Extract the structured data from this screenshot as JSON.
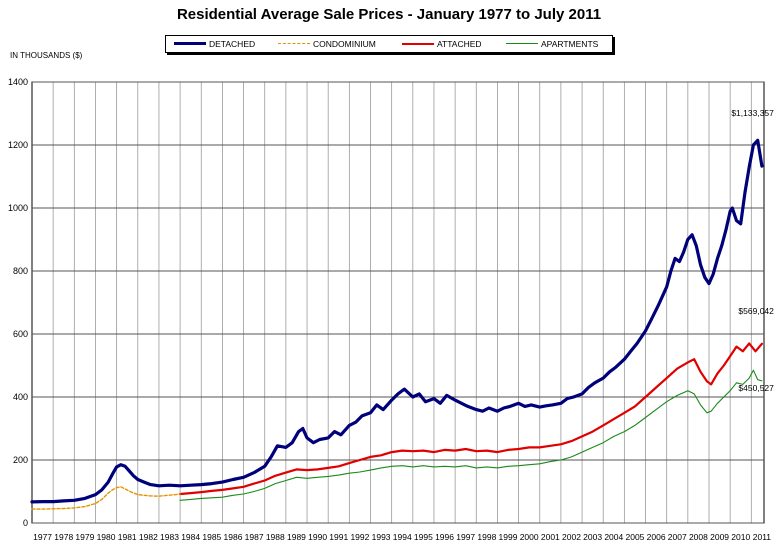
{
  "chart_data": {
    "type": "line",
    "title": "Residential Average Sale Prices  -  January 1977 to July 2011",
    "ylabel": "IN THOUSANDS ($)",
    "xlabel": "",
    "ylim": [
      0,
      1400
    ],
    "yticks": [
      "0",
      "200",
      "400",
      "600",
      "800",
      "1000",
      "1200",
      "1400"
    ],
    "xlim": [
      1977,
      2011.6
    ],
    "xticks": [
      "1977",
      "1978",
      "1979",
      "1980",
      "1981",
      "1982",
      "1983",
      "1984",
      "1985",
      "1986",
      "1987",
      "1988",
      "1989",
      "1990",
      "1991",
      "1992",
      "1993",
      "1994",
      "1995",
      "1996",
      "1997",
      "1998",
      "1999",
      "2000",
      "2001",
      "2002",
      "2003",
      "2004",
      "2005",
      "2006",
      "2007",
      "2008",
      "2009",
      "2010",
      "2011"
    ],
    "grid": true,
    "legend_position": "top",
    "series": [
      {
        "name": "DETACHED",
        "color": "#00007a",
        "style": "solid-thick",
        "points": [
          [
            1977.0,
            67
          ],
          [
            1977.5,
            68
          ],
          [
            1978.0,
            68
          ],
          [
            1978.5,
            70
          ],
          [
            1979.0,
            72
          ],
          [
            1979.5,
            78
          ],
          [
            1980.0,
            90
          ],
          [
            1980.3,
            105
          ],
          [
            1980.6,
            130
          ],
          [
            1980.8,
            155
          ],
          [
            1981.0,
            178
          ],
          [
            1981.2,
            185
          ],
          [
            1981.4,
            180
          ],
          [
            1981.6,
            165
          ],
          [
            1981.8,
            150
          ],
          [
            1982.0,
            138
          ],
          [
            1982.3,
            130
          ],
          [
            1982.6,
            122
          ],
          [
            1983.0,
            118
          ],
          [
            1983.5,
            120
          ],
          [
            1984.0,
            118
          ],
          [
            1984.5,
            120
          ],
          [
            1985.0,
            122
          ],
          [
            1985.5,
            125
          ],
          [
            1986.0,
            130
          ],
          [
            1986.5,
            138
          ],
          [
            1987.0,
            145
          ],
          [
            1987.5,
            160
          ],
          [
            1988.0,
            180
          ],
          [
            1988.3,
            210
          ],
          [
            1988.6,
            245
          ],
          [
            1989.0,
            240
          ],
          [
            1989.3,
            255
          ],
          [
            1989.6,
            290
          ],
          [
            1989.8,
            300
          ],
          [
            1990.0,
            270
          ],
          [
            1990.3,
            255
          ],
          [
            1990.6,
            265
          ],
          [
            1991.0,
            270
          ],
          [
            1991.3,
            290
          ],
          [
            1991.6,
            280
          ],
          [
            1992.0,
            310
          ],
          [
            1992.3,
            320
          ],
          [
            1992.6,
            340
          ],
          [
            1993.0,
            350
          ],
          [
            1993.3,
            375
          ],
          [
            1993.6,
            360
          ],
          [
            1994.0,
            390
          ],
          [
            1994.3,
            410
          ],
          [
            1994.6,
            425
          ],
          [
            1995.0,
            400
          ],
          [
            1995.3,
            410
          ],
          [
            1995.6,
            385
          ],
          [
            1996.0,
            395
          ],
          [
            1996.3,
            380
          ],
          [
            1996.6,
            405
          ],
          [
            1997.0,
            390
          ],
          [
            1997.3,
            380
          ],
          [
            1997.6,
            370
          ],
          [
            1998.0,
            360
          ],
          [
            1998.3,
            355
          ],
          [
            1998.6,
            365
          ],
          [
            1999.0,
            355
          ],
          [
            1999.3,
            365
          ],
          [
            1999.6,
            370
          ],
          [
            2000.0,
            380
          ],
          [
            2000.3,
            370
          ],
          [
            2000.6,
            375
          ],
          [
            2001.0,
            368
          ],
          [
            2001.3,
            372
          ],
          [
            2001.6,
            375
          ],
          [
            2002.0,
            380
          ],
          [
            2002.3,
            395
          ],
          [
            2002.6,
            400
          ],
          [
            2003.0,
            410
          ],
          [
            2003.3,
            430
          ],
          [
            2003.6,
            445
          ],
          [
            2004.0,
            460
          ],
          [
            2004.3,
            480
          ],
          [
            2004.6,
            495
          ],
          [
            2005.0,
            520
          ],
          [
            2005.3,
            545
          ],
          [
            2005.6,
            570
          ],
          [
            2006.0,
            610
          ],
          [
            2006.3,
            650
          ],
          [
            2006.6,
            690
          ],
          [
            2007.0,
            750
          ],
          [
            2007.2,
            800
          ],
          [
            2007.4,
            840
          ],
          [
            2007.6,
            830
          ],
          [
            2007.8,
            860
          ],
          [
            2008.0,
            900
          ],
          [
            2008.2,
            915
          ],
          [
            2008.4,
            880
          ],
          [
            2008.6,
            820
          ],
          [
            2008.8,
            780
          ],
          [
            2009.0,
            760
          ],
          [
            2009.2,
            790
          ],
          [
            2009.4,
            840
          ],
          [
            2009.6,
            880
          ],
          [
            2009.8,
            930
          ],
          [
            2010.0,
            990
          ],
          [
            2010.1,
            1000
          ],
          [
            2010.3,
            960
          ],
          [
            2010.5,
            950
          ],
          [
            2010.7,
            1050
          ],
          [
            2010.9,
            1130
          ],
          [
            2011.1,
            1200
          ],
          [
            2011.3,
            1215
          ],
          [
            2011.5,
            1133
          ]
        ]
      },
      {
        "name": "CONDOMINIUM",
        "color": "#e59400",
        "style": "dashed",
        "points": [
          [
            1977.0,
            44
          ],
          [
            1977.5,
            44
          ],
          [
            1978.0,
            45
          ],
          [
            1978.5,
            46
          ],
          [
            1979.0,
            48
          ],
          [
            1979.5,
            52
          ],
          [
            1980.0,
            62
          ],
          [
            1980.3,
            75
          ],
          [
            1980.6,
            95
          ],
          [
            1980.8,
            105
          ],
          [
            1981.0,
            112
          ],
          [
            1981.2,
            115
          ],
          [
            1981.4,
            108
          ],
          [
            1981.7,
            98
          ],
          [
            1982.0,
            90
          ],
          [
            1982.3,
            88
          ],
          [
            1982.6,
            86
          ],
          [
            1983.0,
            85
          ],
          [
            1983.4,
            88
          ],
          [
            1983.8,
            90
          ],
          [
            1984.0,
            92
          ]
        ]
      },
      {
        "name": "ATTACHED",
        "color": "#e00000",
        "style": "solid",
        "points": [
          [
            1984.0,
            92
          ],
          [
            1984.5,
            95
          ],
          [
            1985.0,
            98
          ],
          [
            1985.5,
            102
          ],
          [
            1986.0,
            105
          ],
          [
            1986.5,
            110
          ],
          [
            1987.0,
            115
          ],
          [
            1987.5,
            125
          ],
          [
            1988.0,
            135
          ],
          [
            1988.5,
            150
          ],
          [
            1989.0,
            160
          ],
          [
            1989.5,
            170
          ],
          [
            1990.0,
            168
          ],
          [
            1990.5,
            170
          ],
          [
            1991.0,
            175
          ],
          [
            1991.5,
            180
          ],
          [
            1992.0,
            190
          ],
          [
            1992.5,
            200
          ],
          [
            1993.0,
            210
          ],
          [
            1993.5,
            215
          ],
          [
            1994.0,
            225
          ],
          [
            1994.5,
            230
          ],
          [
            1995.0,
            228
          ],
          [
            1995.5,
            230
          ],
          [
            1996.0,
            225
          ],
          [
            1996.5,
            232
          ],
          [
            1997.0,
            230
          ],
          [
            1997.5,
            235
          ],
          [
            1998.0,
            228
          ],
          [
            1998.5,
            230
          ],
          [
            1999.0,
            225
          ],
          [
            1999.5,
            232
          ],
          [
            2000.0,
            235
          ],
          [
            2000.5,
            240
          ],
          [
            2001.0,
            240
          ],
          [
            2001.5,
            245
          ],
          [
            2002.0,
            250
          ],
          [
            2002.5,
            260
          ],
          [
            2003.0,
            275
          ],
          [
            2003.5,
            290
          ],
          [
            2004.0,
            310
          ],
          [
            2004.5,
            330
          ],
          [
            2005.0,
            350
          ],
          [
            2005.5,
            370
          ],
          [
            2006.0,
            400
          ],
          [
            2006.5,
            430
          ],
          [
            2007.0,
            460
          ],
          [
            2007.5,
            490
          ],
          [
            2008.0,
            510
          ],
          [
            2008.3,
            520
          ],
          [
            2008.6,
            480
          ],
          [
            2008.9,
            450
          ],
          [
            2009.1,
            440
          ],
          [
            2009.4,
            475
          ],
          [
            2009.7,
            500
          ],
          [
            2010.0,
            530
          ],
          [
            2010.3,
            560
          ],
          [
            2010.6,
            545
          ],
          [
            2010.9,
            570
          ],
          [
            2011.2,
            545
          ],
          [
            2011.5,
            569
          ]
        ]
      },
      {
        "name": "APARTMENTS",
        "color": "#1a8a1a",
        "style": "solid-thin",
        "points": [
          [
            1984.0,
            72
          ],
          [
            1984.5,
            75
          ],
          [
            1985.0,
            78
          ],
          [
            1985.5,
            80
          ],
          [
            1986.0,
            82
          ],
          [
            1986.5,
            88
          ],
          [
            1987.0,
            92
          ],
          [
            1987.5,
            100
          ],
          [
            1988.0,
            110
          ],
          [
            1988.5,
            125
          ],
          [
            1989.0,
            135
          ],
          [
            1989.5,
            145
          ],
          [
            1990.0,
            142
          ],
          [
            1990.5,
            145
          ],
          [
            1991.0,
            148
          ],
          [
            1991.5,
            152
          ],
          [
            1992.0,
            158
          ],
          [
            1992.5,
            162
          ],
          [
            1993.0,
            168
          ],
          [
            1993.5,
            175
          ],
          [
            1994.0,
            180
          ],
          [
            1994.5,
            182
          ],
          [
            1995.0,
            178
          ],
          [
            1995.5,
            182
          ],
          [
            1996.0,
            178
          ],
          [
            1996.5,
            180
          ],
          [
            1997.0,
            178
          ],
          [
            1997.5,
            182
          ],
          [
            1998.0,
            175
          ],
          [
            1998.5,
            178
          ],
          [
            1999.0,
            175
          ],
          [
            1999.5,
            180
          ],
          [
            2000.0,
            182
          ],
          [
            2000.5,
            185
          ],
          [
            2001.0,
            188
          ],
          [
            2001.5,
            195
          ],
          [
            2002.0,
            200
          ],
          [
            2002.5,
            210
          ],
          [
            2003.0,
            225
          ],
          [
            2003.5,
            240
          ],
          [
            2004.0,
            255
          ],
          [
            2004.5,
            275
          ],
          [
            2005.0,
            290
          ],
          [
            2005.5,
            310
          ],
          [
            2006.0,
            335
          ],
          [
            2006.5,
            360
          ],
          [
            2007.0,
            385
          ],
          [
            2007.5,
            405
          ],
          [
            2008.0,
            420
          ],
          [
            2008.3,
            410
          ],
          [
            2008.6,
            375
          ],
          [
            2008.9,
            350
          ],
          [
            2009.1,
            355
          ],
          [
            2009.4,
            380
          ],
          [
            2009.7,
            400
          ],
          [
            2010.0,
            420
          ],
          [
            2010.3,
            445
          ],
          [
            2010.6,
            440
          ],
          [
            2010.9,
            460
          ],
          [
            2011.1,
            485
          ],
          [
            2011.3,
            455
          ],
          [
            2011.5,
            451
          ]
        ]
      }
    ],
    "annotations": [
      {
        "text": "$1,133,357",
        "x": 2011.5,
        "y": 1133
      },
      {
        "text": "$569,042",
        "x": 2011.5,
        "y": 569
      },
      {
        "text": "$450,527",
        "x": 2011.5,
        "y": 451
      }
    ]
  }
}
